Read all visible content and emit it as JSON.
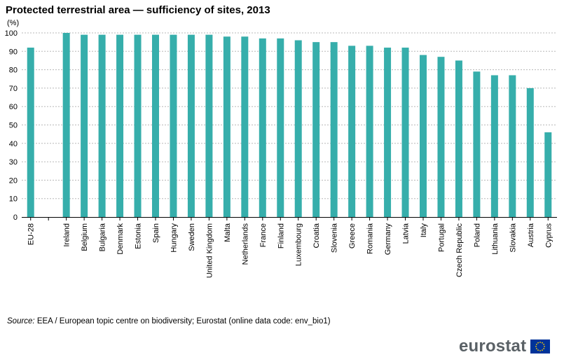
{
  "title": "Protected terrestrial  area — sufficiency of sites, 2013",
  "unit_label": "(%)",
  "source": {
    "label": "Source:",
    "text": " EEA / European topic centre on biodiversity; Eurostat (online data code: env_bio1)"
  },
  "logo": {
    "text": "eurostat",
    "flag_icon": "eu-flag-icon",
    "flag_color": "#003399",
    "star_color": "#ffcc00"
  },
  "colors": {
    "bar": "#36aeab",
    "grid": "#b8b8b8",
    "axis": "#000000",
    "text": "#000000"
  },
  "chart_data": {
    "type": "bar",
    "categories": [
      "EU-28",
      "",
      "Ireland",
      "Belgium",
      "Bulgaria",
      "Denmark",
      "Estonia",
      "Spain",
      "Hungary",
      "Sweden",
      "United Kingdom",
      "Malta",
      "Netherlands",
      "France",
      "Finland",
      "Luxembourg",
      "Croatia",
      "Slovenia",
      "Greece",
      "Romania",
      "Germany",
      "Latvia",
      "Italy",
      "Portugal",
      "Czech Republic",
      "Poland",
      "Lithuania",
      "Slovakia",
      "Austria",
      "Cyprus"
    ],
    "values": [
      92,
      null,
      100,
      99,
      99,
      99,
      99,
      99,
      99,
      99,
      99,
      98,
      98,
      97,
      97,
      96,
      95,
      95,
      93,
      93,
      92,
      92,
      88,
      87,
      85,
      79,
      77,
      77,
      70,
      46
    ],
    "ylim": [
      0,
      100
    ],
    "yticks": [
      0,
      10,
      20,
      30,
      40,
      50,
      60,
      70,
      80,
      90,
      100
    ],
    "xlabel": "",
    "ylabel": "(%)",
    "grid": true,
    "legend": "none"
  }
}
